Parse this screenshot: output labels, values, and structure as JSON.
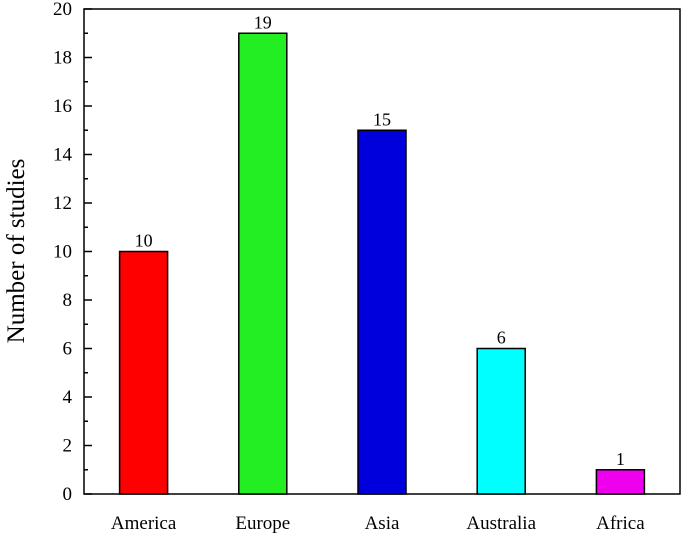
{
  "chart_data": {
    "type": "bar",
    "title": "",
    "xlabel": "",
    "ylabel": "Number of studies",
    "categories": [
      "America",
      "Europe",
      "Asia",
      "Australia",
      "Africa"
    ],
    "values": [
      10,
      19,
      15,
      6,
      1
    ],
    "data_labels": [
      "10",
      "19",
      "15",
      "6",
      "1"
    ],
    "colors": [
      "#ff0000",
      "#22ee22",
      "#0000dd",
      "#00ffff",
      "#ee00ee"
    ],
    "ylim": [
      0,
      20
    ],
    "yticks": [
      0,
      2,
      4,
      6,
      8,
      10,
      12,
      14,
      16,
      18,
      20
    ],
    "grid": false,
    "legend": "none"
  }
}
